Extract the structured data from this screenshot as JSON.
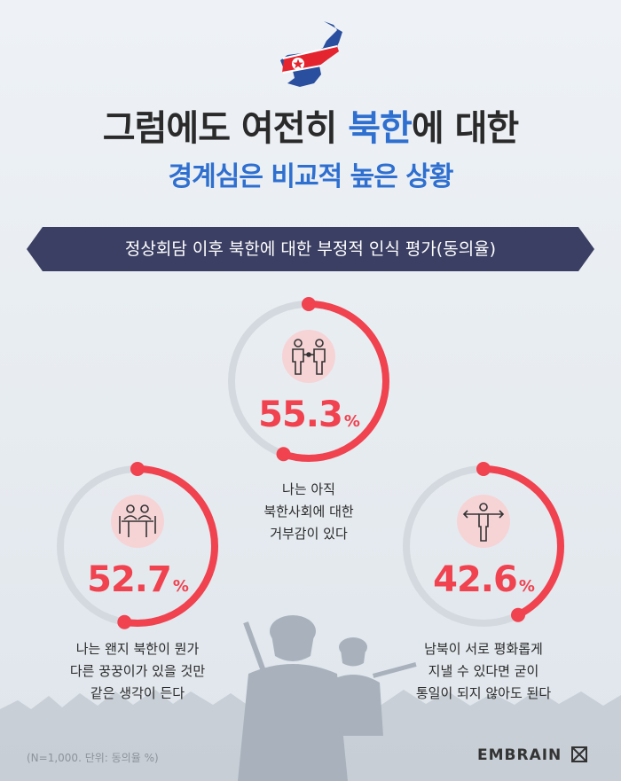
{
  "title": {
    "line1_pre": "그럼에도 여전히 ",
    "line1_highlight": "북한",
    "line1_post": "에 대한",
    "line2": "경계심은 비교적 높은 상황"
  },
  "banner": "정상회담 이후 북한에 대한 부정적 인식 평가(동의율)",
  "stats": [
    {
      "value": 55.3,
      "value_text": "55.3",
      "unit": "%",
      "desc": [
        "나는 아직",
        "북한사회에 대한",
        "거부감이 있다"
      ],
      "icon": "handshake-people-icon"
    },
    {
      "value": 52.7,
      "value_text": "52.7",
      "unit": "%",
      "desc": [
        "나는 왠지 북한이 뭔가",
        "다른 꿍꿍이가 있을 것만",
        "같은 생각이 든다"
      ],
      "icon": "meeting-table-icon"
    },
    {
      "value": 42.6,
      "value_text": "42.6",
      "unit": "%",
      "desc": [
        "남북이 서로 평화롭게",
        "지낼 수 있다면 굳이",
        "통일이 되지 않아도 된다"
      ],
      "icon": "crossroads-person-icon"
    }
  ],
  "footnote": "(N=1,000. 단위: 동의율 %)",
  "logo": "EMBRAIN",
  "colors": {
    "accent": "#f0424f",
    "blue": "#2e6fd0",
    "banner": "#3b3f63",
    "track": "#d4d9df"
  }
}
